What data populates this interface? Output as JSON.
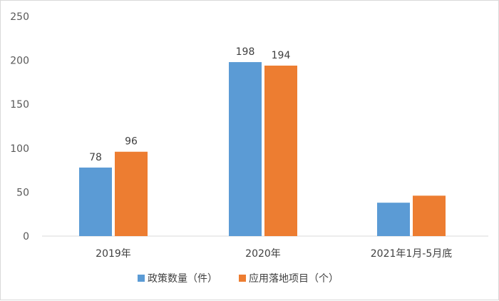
{
  "chart_data": {
    "type": "bar",
    "categories": [
      "2019年",
      "2020年",
      "2021年1月-5月底"
    ],
    "series": [
      {
        "name": "政策数量（件）",
        "color": "#5b9bd5",
        "values": [
          78,
          198,
          38
        ],
        "labels": [
          "78",
          "198",
          ""
        ]
      },
      {
        "name": "应用落地项目（个）",
        "color": "#ed7d31",
        "values": [
          96,
          194,
          46
        ],
        "labels": [
          "96",
          "194",
          ""
        ]
      }
    ],
    "yticks": [
      "0",
      "50",
      "100",
      "150",
      "200",
      "250"
    ],
    "ylim": [
      0,
      250
    ],
    "grid": false,
    "legend_position": "bottom"
  }
}
